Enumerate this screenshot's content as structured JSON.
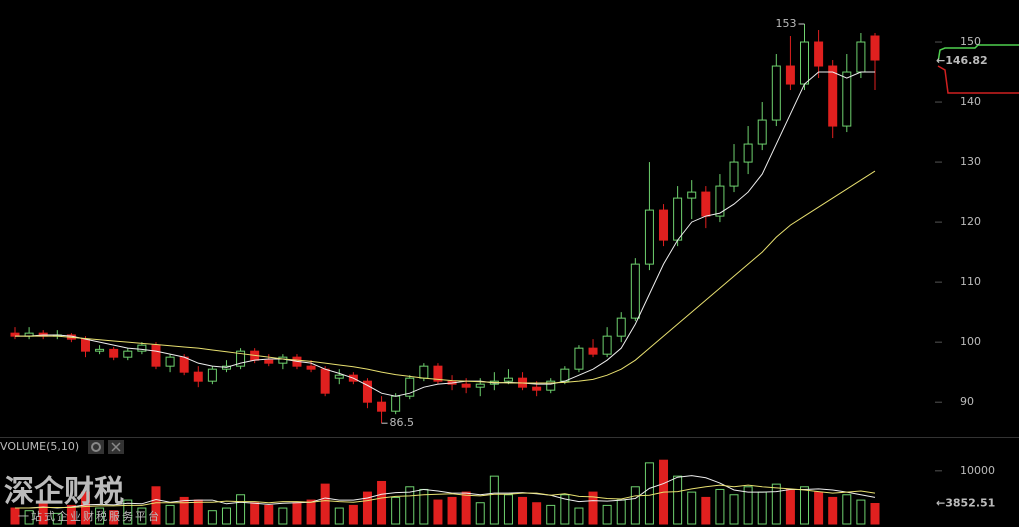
{
  "chart_data": {
    "type": "candlestick",
    "ylim": [
      84.2,
      157
    ],
    "yticks": [
      90,
      100,
      110,
      120,
      130,
      140,
      150
    ],
    "ohlc": [
      [
        101.5,
        102.5,
        100.5,
        101
      ],
      [
        101,
        102.5,
        100.5,
        101.5
      ],
      [
        101.5,
        102,
        100.5,
        101
      ],
      [
        101,
        102,
        100.5,
        101.2
      ],
      [
        101.2,
        101.5,
        100,
        100.5
      ],
      [
        100.5,
        101,
        97.5,
        98.5
      ],
      [
        98.5,
        99.5,
        98,
        98.8
      ],
      [
        98.8,
        99.2,
        97,
        97.5
      ],
      [
        97.5,
        99,
        97,
        98.5
      ],
      [
        98.5,
        100,
        98,
        99.5
      ],
      [
        99.5,
        100,
        95.5,
        96
      ],
      [
        96,
        98,
        95,
        97.5
      ],
      [
        97.5,
        98,
        94.5,
        95
      ],
      [
        95,
        96,
        92.5,
        93.5
      ],
      [
        93.5,
        96,
        93,
        95.5
      ],
      [
        95.5,
        97,
        95,
        96
      ],
      [
        96,
        99,
        95.5,
        98.5
      ],
      [
        98.5,
        99,
        96.5,
        97
      ],
      [
        97,
        98,
        96,
        96.5
      ],
      [
        96.5,
        98,
        95.5,
        97.5
      ],
      [
        97.5,
        98,
        95.5,
        96
      ],
      [
        96,
        97,
        95,
        95.5
      ],
      [
        95.5,
        96,
        91,
        91.5
      ],
      [
        94,
        95.5,
        93,
        94.5
      ],
      [
        94.5,
        95,
        93,
        93.5
      ],
      [
        93.5,
        94,
        89,
        90
      ],
      [
        90,
        91,
        86.5,
        88.5
      ],
      [
        88.5,
        91.5,
        88,
        91
      ],
      [
        91,
        94.5,
        90.5,
        94
      ],
      [
        94,
        96.5,
        93.5,
        96
      ],
      [
        96,
        96.5,
        93,
        93.5
      ],
      [
        93.5,
        94.5,
        92,
        93
      ],
      [
        93,
        94,
        91.5,
        92.5
      ],
      [
        92.5,
        94,
        91,
        93
      ],
      [
        93,
        95,
        92,
        93.5
      ],
      [
        93.5,
        95.5,
        93,
        94
      ],
      [
        94,
        95,
        92,
        92.5
      ],
      [
        92.5,
        93.5,
        91,
        92
      ],
      [
        92,
        94,
        91.5,
        93.5
      ],
      [
        93.5,
        96,
        93,
        95.5
      ],
      [
        95.5,
        99.5,
        95,
        99
      ],
      [
        99,
        100.5,
        97.5,
        98
      ],
      [
        98,
        102.5,
        97.5,
        101
      ],
      [
        101,
        105,
        100,
        104
      ],
      [
        104,
        114,
        103.5,
        113
      ],
      [
        113,
        130,
        112,
        122
      ],
      [
        122,
        123,
        116,
        117
      ],
      [
        117,
        126,
        116,
        124
      ],
      [
        124,
        127,
        120.5,
        125
      ],
      [
        125,
        126,
        119,
        121
      ],
      [
        121,
        128,
        120,
        126
      ],
      [
        126,
        133,
        125,
        130
      ],
      [
        130,
        136,
        128,
        133
      ],
      [
        133,
        140,
        132,
        137
      ],
      [
        137,
        148,
        136,
        146
      ],
      [
        146,
        151,
        142,
        143
      ],
      [
        143,
        153,
        142,
        150
      ],
      [
        150,
        152,
        144,
        146
      ],
      [
        146,
        147,
        134,
        136
      ],
      [
        136,
        148,
        135,
        145
      ],
      [
        145,
        151.5,
        144,
        150
      ],
      [
        151,
        151.5,
        142,
        147
      ]
    ],
    "ma_short": [
      101,
      101,
      101.2,
      101.2,
      101,
      100.5,
      100,
      99.5,
      99,
      98.8,
      98.5,
      98,
      97.5,
      96.5,
      96,
      95.8,
      96.5,
      97,
      97.2,
      97.2,
      96.8,
      96.5,
      95.5,
      94.8,
      94,
      92.8,
      91.5,
      91,
      91.5,
      92.5,
      93,
      93.2,
      93.5,
      93.5,
      93.2,
      93.3,
      93.2,
      93,
      93,
      93.5,
      94.5,
      95.5,
      97,
      99,
      103,
      108,
      113,
      117,
      120,
      121,
      121.5,
      123,
      125,
      128,
      133,
      138,
      143,
      145,
      145,
      144,
      145,
      145
    ],
    "ma_long": [
      101,
      101,
      101,
      101,
      100.8,
      100.6,
      100.4,
      100.2,
      100,
      99.8,
      99.6,
      99.4,
      99.2,
      99,
      98.7,
      98.4,
      98.1,
      97.8,
      97.5,
      97.2,
      97,
      96.8,
      96.5,
      96.2,
      95.9,
      95.5,
      95,
      94.6,
      94.3,
      94,
      93.8,
      93.6,
      93.5,
      93.4,
      93.3,
      93.2,
      93.2,
      93.2,
      93.2,
      93.3,
      93.5,
      93.8,
      94.5,
      95.5,
      97,
      99,
      101,
      103,
      105,
      107,
      109,
      111,
      113,
      115,
      117.5,
      119.5,
      121,
      122.5,
      124,
      125.5,
      127,
      128.5
    ],
    "high_annotation": 153,
    "low_annotation": 86.5,
    "price_marker": {
      "value": 146.82,
      "label": "←146.82"
    },
    "volume_title": "VOLUME(5,10)",
    "vlim": [
      0,
      15800
    ],
    "vticks": [
      10000
    ],
    "volume": [
      3000,
      2500,
      4000,
      2000,
      3500,
      6000,
      3000,
      2500,
      4500,
      3000,
      7000,
      3500,
      5000,
      4500,
      2500,
      3000,
      5500,
      4000,
      3500,
      3000,
      4000,
      4500,
      7500,
      3000,
      3500,
      6000,
      8000,
      5000,
      7000,
      6500,
      4500,
      5000,
      6000,
      4000,
      9000,
      5500,
      5000,
      4000,
      3500,
      5500,
      3000,
      6000,
      3500,
      4500,
      7000,
      11500,
      12000,
      9000,
      6000,
      5000,
      6500,
      5500,
      7000,
      6000,
      7500,
      6500,
      7000,
      6000,
      5000,
      5500,
      4500,
      3852.51
    ],
    "vol_ma5": [
      3000,
      3000,
      3200,
      3000,
      3200,
      3600,
      3700,
      3600,
      3900,
      3800,
      4600,
      4100,
      4400,
      4500,
      4500,
      3800,
      4100,
      3900,
      3700,
      3900,
      4000,
      4100,
      4900,
      4500,
      4500,
      4900,
      5600,
      5900,
      6000,
      6500,
      6200,
      5800,
      5800,
      5500,
      5800,
      5800,
      5900,
      5700,
      5400,
      4700,
      4200,
      4400,
      4300,
      4500,
      4800,
      6700,
      7600,
      8800,
      9100,
      8700,
      7700,
      6400,
      6000,
      6000,
      6100,
      6500,
      6500,
      6600,
      6400,
      6000,
      5500,
      5000
    ],
    "vol_ma10": [
      3000,
      3000,
      3100,
      3100,
      3100,
      3300,
      3400,
      3400,
      3500,
      3500,
      4000,
      4000,
      4000,
      4100,
      4100,
      4300,
      4200,
      4200,
      4000,
      4200,
      4200,
      4100,
      4400,
      4200,
      4100,
      4400,
      4900,
      5200,
      5300,
      5500,
      5600,
      5700,
      5400,
      5300,
      5600,
      5600,
      5800,
      5800,
      5400,
      5700,
      5200,
      5100,
      4800,
      4700,
      5300,
      5400,
      6000,
      6100,
      6600,
      7000,
      7300,
      7000,
      7300,
      7000,
      6800,
      6600,
      6400,
      6100,
      5800,
      6000,
      6200,
      5800
    ],
    "volume_marker": {
      "value": 3852.51,
      "label": "←3852.51"
    }
  },
  "watermark": {
    "title": "深企财税",
    "subtitle": "一站式企业财税服务平台"
  }
}
